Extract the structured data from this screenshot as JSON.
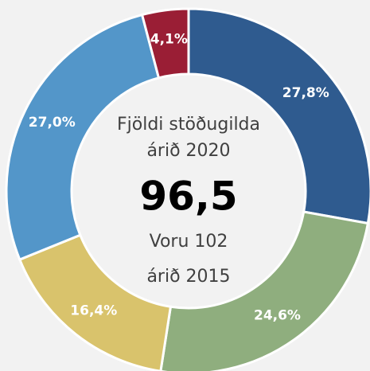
{
  "chart_data": {
    "type": "donut",
    "categories": [
      null,
      null,
      null,
      null,
      null
    ],
    "values": [
      27.8,
      24.6,
      16.4,
      27.0,
      4.1
    ],
    "value_labels": [
      "27,8%",
      "24,6%",
      "16,4%",
      "27,0%",
      "4,1%"
    ],
    "colors": [
      "#2f5b8f",
      "#8fae7e",
      "#d9c36c",
      "#5396c9",
      "#9a1e35"
    ],
    "annotations": [
      "Fjöldi stöðugilda",
      "árið 2020",
      "96,5",
      "Voru 102",
      "árið 2015"
    ]
  }
}
